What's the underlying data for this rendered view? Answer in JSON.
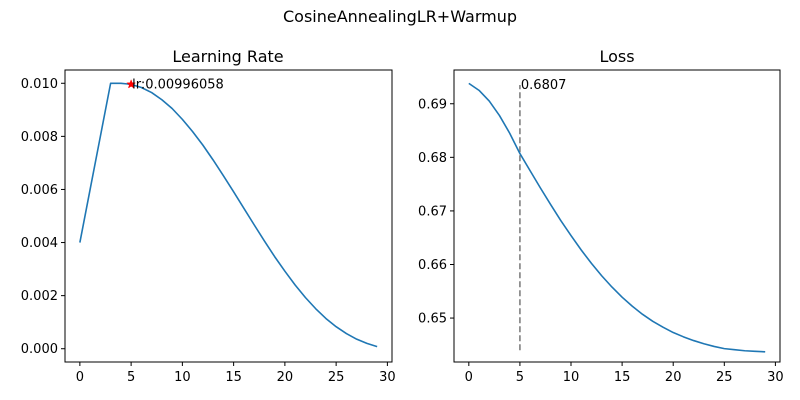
{
  "figure": {
    "suptitle": "CosineAnnealingLR+Warmup"
  },
  "chart_data": [
    {
      "type": "line",
      "title": "Learning Rate",
      "xlabel": "",
      "ylabel": "",
      "xlim": [
        -1.45,
        30.45
      ],
      "ylim": [
        -0.0005,
        0.0105
      ],
      "xticks": [
        0,
        5,
        10,
        15,
        20,
        25,
        30
      ],
      "xtick_labels": [
        "0",
        "5",
        "10",
        "15",
        "20",
        "25",
        "30"
      ],
      "yticks": [
        0.0,
        0.002,
        0.004,
        0.006,
        0.008,
        0.01
      ],
      "ytick_labels": [
        "0.000",
        "0.002",
        "0.004",
        "0.006",
        "0.008",
        "0.010"
      ],
      "grid": false,
      "series_color": "#1f77b4",
      "x": [
        0,
        1,
        2,
        3,
        4,
        5,
        6,
        7,
        8,
        9,
        10,
        11,
        12,
        13,
        14,
        15,
        16,
        17,
        18,
        19,
        20,
        21,
        22,
        23,
        24,
        25,
        26,
        27,
        28,
        29
      ],
      "y": [
        0.004,
        0.006,
        0.008,
        0.01,
        0.01,
        0.00996,
        0.00984,
        0.00965,
        0.00938,
        0.00905,
        0.00864,
        0.00818,
        0.00767,
        0.00711,
        0.00652,
        0.00591,
        0.00529,
        0.00467,
        0.00406,
        0.00347,
        0.00292,
        0.0024,
        0.00193,
        0.00151,
        0.00114,
        0.00083,
        0.00057,
        0.00036,
        0.0002,
        8e-05
      ],
      "marker": {
        "x": 5,
        "y": 0.00996058,
        "symbol": "star",
        "color": "#ff0000"
      },
      "annotation": {
        "text": "lr:0.00996058",
        "x": 5,
        "y": 0.00996058
      }
    },
    {
      "type": "line",
      "title": "Loss",
      "xlabel": "",
      "ylabel": "",
      "xlim": [
        -1.45,
        30.45
      ],
      "ylim": [
        0.6418,
        0.6963
      ],
      "xticks": [
        0,
        5,
        10,
        15,
        20,
        25,
        30
      ],
      "xtick_labels": [
        "0",
        "5",
        "10",
        "15",
        "20",
        "25",
        "30"
      ],
      "yticks": [
        0.65,
        0.66,
        0.67,
        0.68,
        0.69
      ],
      "ytick_labels": [
        "0.65",
        "0.66",
        "0.67",
        "0.68",
        "0.69"
      ],
      "grid": false,
      "series_color": "#1f77b4",
      "x": [
        0,
        1,
        2,
        3,
        4,
        5,
        6,
        7,
        8,
        9,
        10,
        11,
        12,
        13,
        14,
        15,
        16,
        17,
        18,
        19,
        20,
        21,
        22,
        23,
        24,
        25,
        26,
        27,
        28,
        29
      ],
      "y": [
        0.6938,
        0.6925,
        0.6905,
        0.6878,
        0.6845,
        0.6807,
        0.6775,
        0.6743,
        0.6712,
        0.6682,
        0.6654,
        0.6627,
        0.6602,
        0.6579,
        0.6558,
        0.6539,
        0.6522,
        0.6507,
        0.6494,
        0.6483,
        0.6473,
        0.6465,
        0.6458,
        0.6452,
        0.6447,
        0.6443,
        0.6441,
        0.6439,
        0.6438,
        0.6437
      ],
      "vline": {
        "x": 5,
        "y_from": 0.644,
        "y_to": 0.6935,
        "color": "#808080",
        "style": "dashed"
      },
      "annotation": {
        "text": "0.6807",
        "x": 5,
        "y": 0.6935
      }
    }
  ]
}
